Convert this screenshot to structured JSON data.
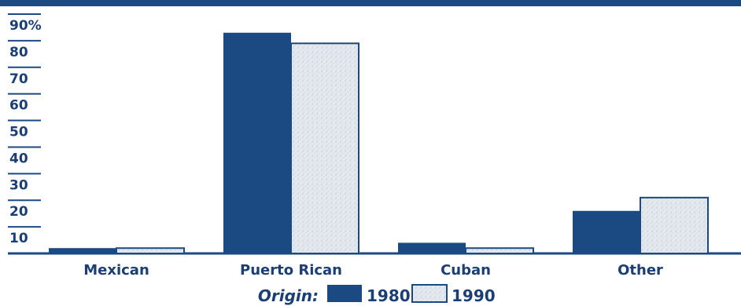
{
  "chart_data": {
    "type": "bar",
    "categories": [
      "Mexican",
      "Puerto Rican",
      "Cuban",
      "Other"
    ],
    "series": [
      {
        "name": "1980",
        "values": [
          2,
          83,
          4,
          16
        ]
      },
      {
        "name": "1990",
        "values": [
          2,
          79,
          2,
          21
        ]
      }
    ],
    "y_ticks": [
      "10",
      "20",
      "30",
      "40",
      "50",
      "60",
      "70",
      "80",
      "90%"
    ],
    "ylim": [
      0,
      90
    ],
    "legend_title": "Origin:",
    "legend_position": "bottom-center",
    "colors": {
      "s1980": "#1b4a82",
      "s1990": "#e4e9ef",
      "text": "#1b3f74",
      "axis": "#1b4a82"
    }
  }
}
